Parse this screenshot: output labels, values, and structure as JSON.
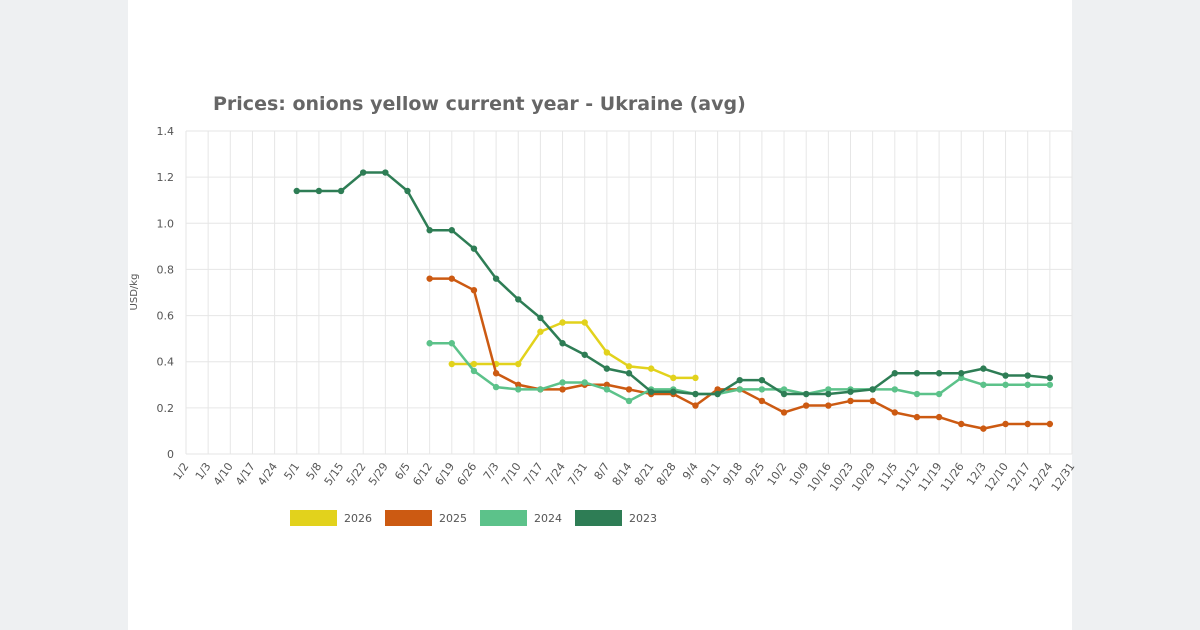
{
  "chart_data": {
    "type": "line",
    "title": "Prices: onions yellow current year - Ukraine (avg)",
    "y_label": "USD/kg",
    "categories": [
      "1/2",
      "1/3",
      "4/10",
      "4/17",
      "4/24",
      "5/1",
      "5/8",
      "5/15",
      "5/22",
      "5/29",
      "6/5",
      "6/12",
      "6/19",
      "6/26",
      "7/3",
      "7/10",
      "7/17",
      "7/24",
      "7/31",
      "8/7",
      "8/14",
      "8/21",
      "8/28",
      "9/4",
      "9/11",
      "9/18",
      "9/25",
      "10/2",
      "10/9",
      "10/16",
      "10/23",
      "10/29",
      "11/5",
      "11/12",
      "11/19",
      "11/26",
      "12/3",
      "12/10",
      "12/17",
      "12/24",
      "12/31"
    ],
    "series": [
      {
        "name": "2026",
        "color": "#e2d21c",
        "values": [
          null,
          null,
          null,
          null,
          null,
          null,
          null,
          null,
          null,
          null,
          null,
          null,
          0.39,
          0.39,
          0.39,
          0.39,
          0.53,
          0.57,
          0.57,
          0.44,
          0.38,
          0.37,
          0.33,
          0.33,
          null,
          null,
          null,
          null,
          null,
          null,
          null,
          null,
          null,
          null,
          null,
          null,
          null,
          null,
          null,
          null,
          null
        ]
      },
      {
        "name": "2025",
        "color": "#cc5a12",
        "values": [
          null,
          null,
          null,
          null,
          null,
          null,
          null,
          null,
          null,
          null,
          null,
          0.76,
          0.76,
          0.71,
          0.35,
          0.3,
          0.28,
          0.28,
          0.3,
          0.3,
          0.28,
          0.26,
          0.26,
          0.21,
          0.28,
          0.28,
          0.23,
          0.18,
          0.21,
          0.21,
          0.23,
          0.23,
          0.18,
          0.16,
          0.16,
          0.13,
          0.11,
          0.13,
          0.13,
          0.13,
          null
        ]
      },
      {
        "name": "2024",
        "color": "#5cc28a",
        "values": [
          null,
          null,
          null,
          null,
          null,
          null,
          null,
          null,
          null,
          null,
          null,
          0.48,
          0.48,
          0.36,
          0.29,
          0.28,
          0.28,
          0.31,
          0.31,
          0.28,
          0.23,
          0.28,
          0.28,
          0.26,
          0.26,
          0.28,
          0.28,
          0.28,
          0.26,
          0.28,
          0.28,
          0.28,
          0.28,
          0.26,
          0.26,
          0.33,
          0.3,
          0.3,
          0.3,
          0.3,
          null
        ]
      },
      {
        "name": "2023",
        "color": "#2e7d55",
        "values": [
          null,
          null,
          null,
          null,
          null,
          1.14,
          1.14,
          1.14,
          1.22,
          1.22,
          1.14,
          0.97,
          0.97,
          0.89,
          0.76,
          0.67,
          0.59,
          0.48,
          0.43,
          0.37,
          0.35,
          0.27,
          0.27,
          0.26,
          0.26,
          0.32,
          0.32,
          0.26,
          0.26,
          0.26,
          0.27,
          0.28,
          0.35,
          0.35,
          0.35,
          0.35,
          0.37,
          0.34,
          0.34,
          0.33,
          null
        ]
      }
    ],
    "ylim": [
      0,
      1.4
    ],
    "yticks": [
      0,
      0.2,
      0.4,
      0.6,
      0.8,
      {
        "value": 1,
        "label": "1.0"
      },
      1.2,
      1.4
    ],
    "grid": true
  }
}
